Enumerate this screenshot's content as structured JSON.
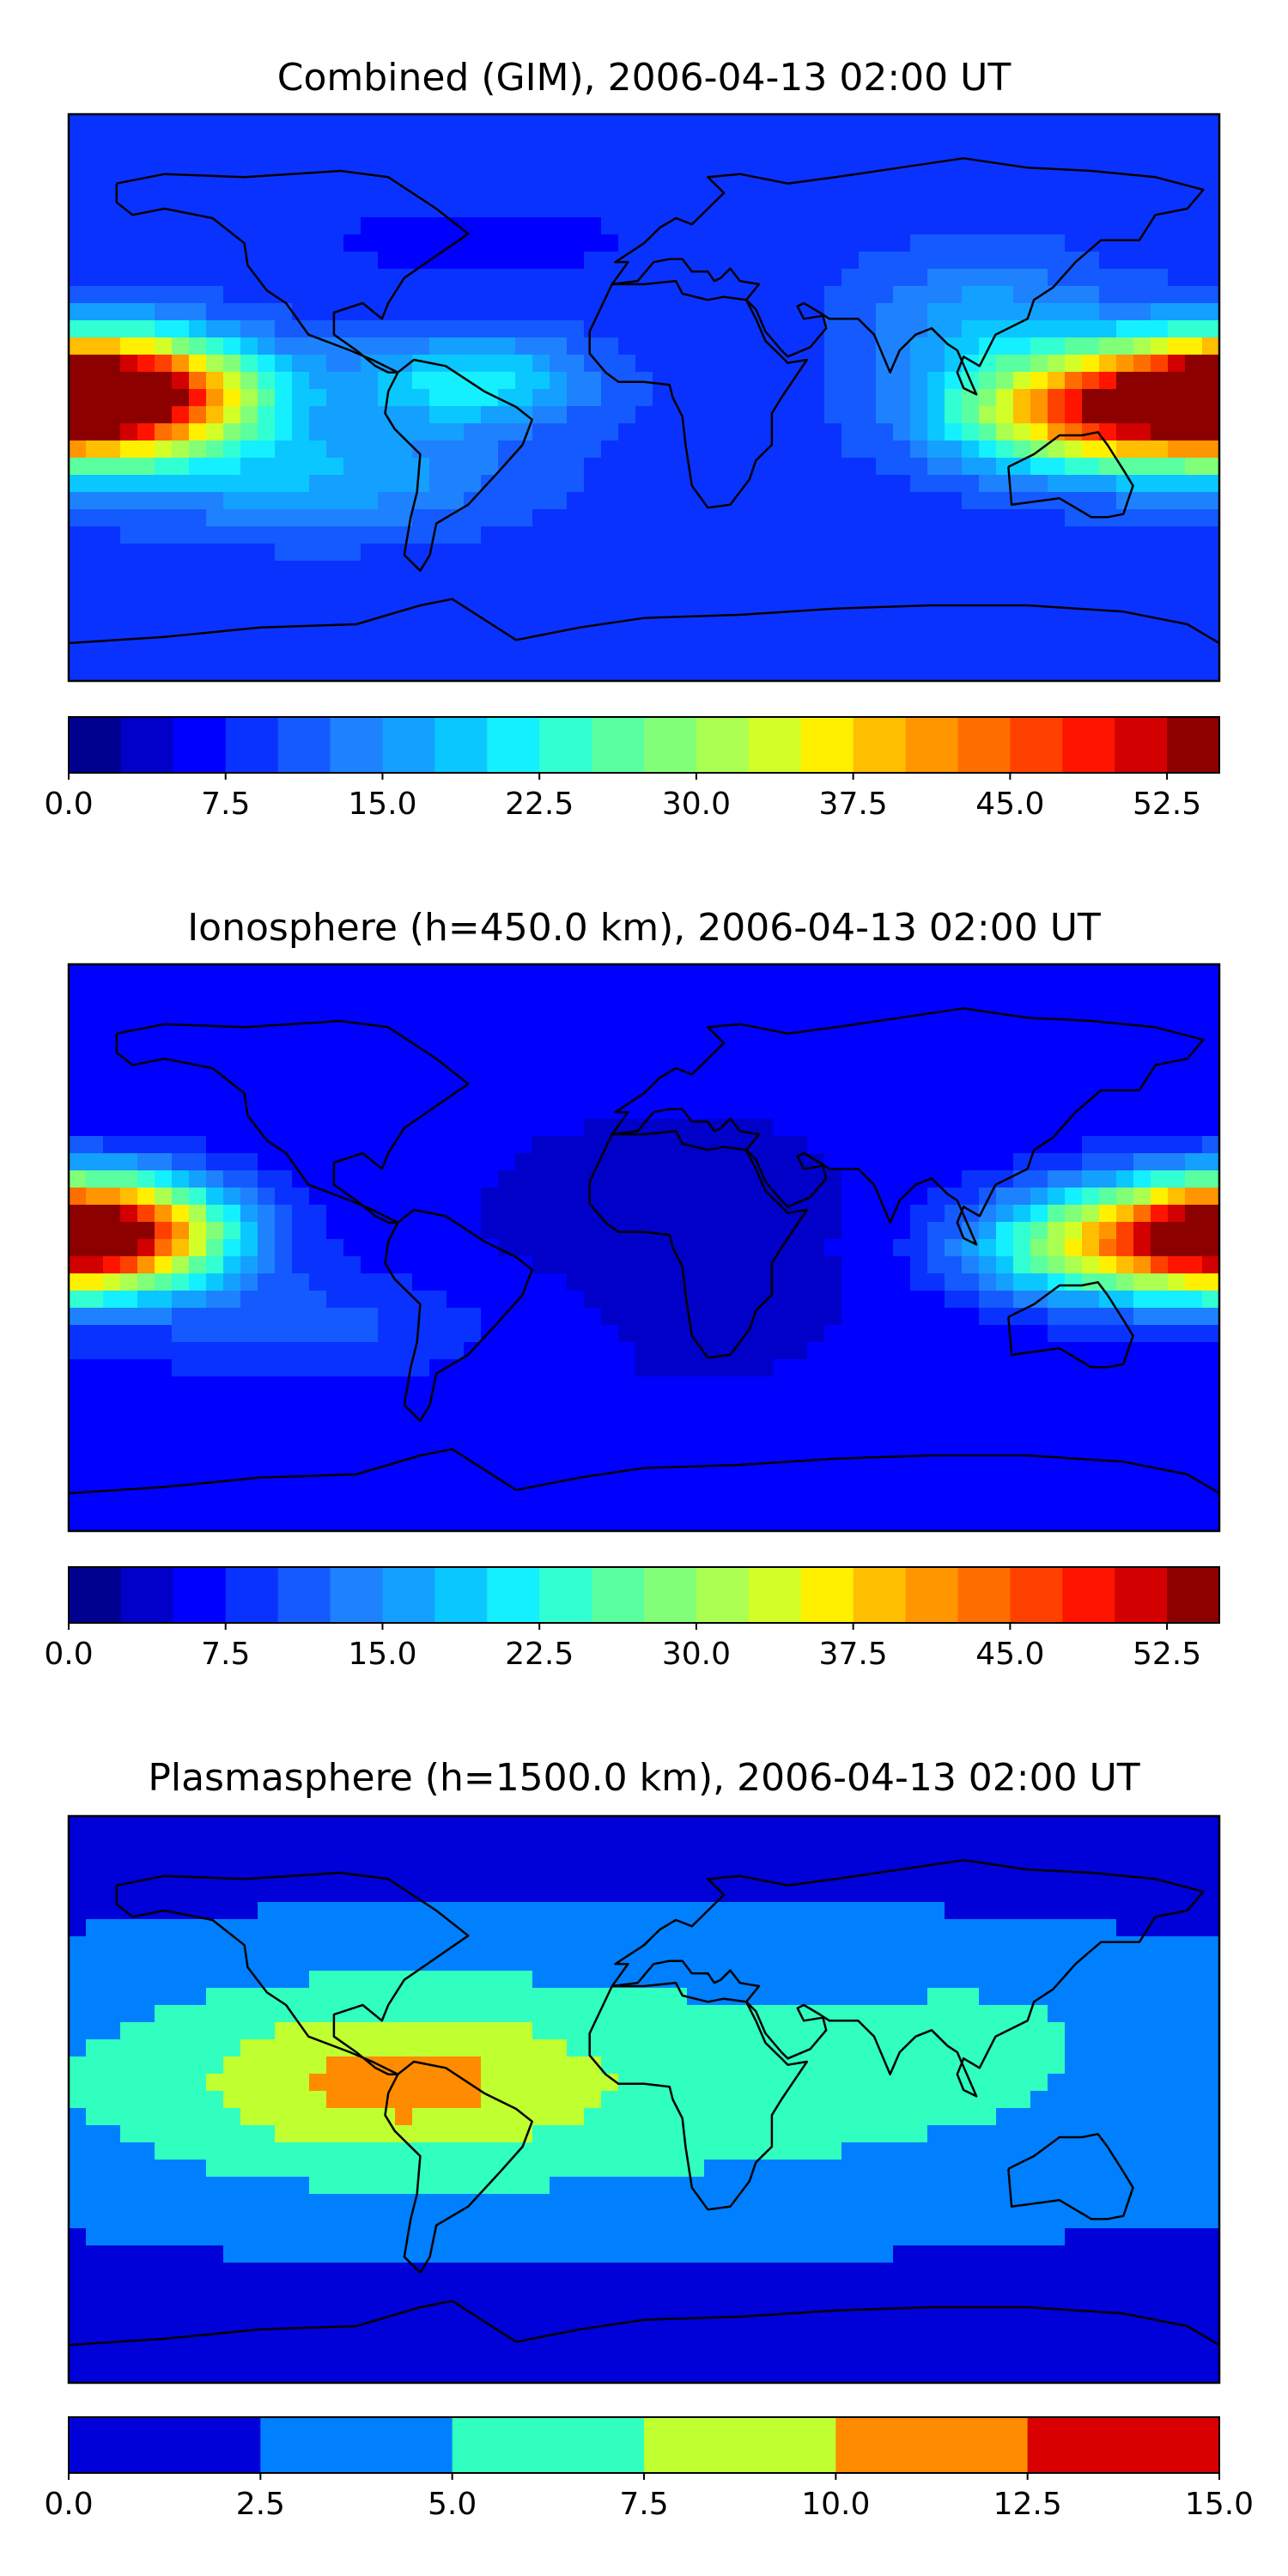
{
  "chart_data": [
    {
      "type": "heatmap",
      "title": "Combined (GIM), 2006-04-13 02:00 UT",
      "colorbar": {
        "range": [
          0,
          55
        ],
        "step": 2.5,
        "tick_values": [
          0,
          7.5,
          15,
          22.5,
          30,
          37.5,
          45,
          52.5
        ],
        "tick_labels": [
          "0.0",
          "7.5",
          "15.0",
          "22.5",
          "30.0",
          "37.5",
          "45.0",
          "52.5"
        ],
        "colors": [
          "#00008f",
          "#0000c8",
          "#0000ff",
          "#0a32ff",
          "#145aff",
          "#1e82ff",
          "#14a0ff",
          "#0ac8ff",
          "#14f0ff",
          "#32ffd2",
          "#5aff9f",
          "#82ff78",
          "#aaff50",
          "#d2ff28",
          "#fff000",
          "#ffbe00",
          "#ff9600",
          "#ff6e00",
          "#ff4100",
          "#ff1400",
          "#d20000",
          "#8c0000"
        ]
      },
      "field": {
        "background": 9,
        "hotspots": [
          {
            "lon": -165,
            "lat": 2,
            "peak": 44,
            "sx": 30,
            "sy": 12
          },
          {
            "lon": 175,
            "lat": -2,
            "peak": 41,
            "sx": 35,
            "sy": 14
          },
          {
            "lon": 130,
            "lat": -5,
            "peak": 30,
            "sx": 28,
            "sy": 12
          },
          {
            "lon": -55,
            "lat": 5,
            "peak": 22,
            "sx": 25,
            "sy": 10
          },
          {
            "lon": -100,
            "lat": -25,
            "peak": 17,
            "sx": 40,
            "sy": 12
          },
          {
            "lon": 105,
            "lat": 25,
            "peak": 16,
            "sx": 25,
            "sy": 14
          }
        ],
        "lows": [
          {
            "lon": 10,
            "lat": -55,
            "peak": 7,
            "sx": 40,
            "sy": 12
          },
          {
            "lon": -50,
            "lat": 50,
            "peak": 5,
            "sx": 45,
            "sy": 10
          }
        ]
      }
    },
    {
      "type": "heatmap",
      "title": "Ionosphere  (h=450.0 km), 2006-04-13 02:00 UT",
      "colorbar": {
        "range": [
          0,
          55
        ],
        "step": 2.5,
        "tick_values": [
          0,
          7.5,
          15,
          22.5,
          30,
          37.5,
          45,
          52.5
        ],
        "tick_labels": [
          "0.0",
          "7.5",
          "15.0",
          "22.5",
          "30.0",
          "37.5",
          "45.0",
          "52.5"
        ],
        "colors": [
          "#00008f",
          "#0000c8",
          "#0000ff",
          "#0a32ff",
          "#145aff",
          "#1e82ff",
          "#14a0ff",
          "#0ac8ff",
          "#14f0ff",
          "#32ffd2",
          "#5aff9f",
          "#82ff78",
          "#aaff50",
          "#d2ff28",
          "#fff000",
          "#ffbe00",
          "#ff9600",
          "#ff6e00",
          "#ff4100",
          "#ff1400",
          "#d20000",
          "#8c0000"
        ]
      },
      "field": {
        "background": 6,
        "hotspots": [
          {
            "lon": -170,
            "lat": 5,
            "peak": 37,
            "sx": 28,
            "sy": 12
          },
          {
            "lon": 178,
            "lat": 3,
            "peak": 35,
            "sx": 30,
            "sy": 13
          },
          {
            "lon": 130,
            "lat": 0,
            "peak": 22,
            "sx": 25,
            "sy": 12
          },
          {
            "lon": -100,
            "lat": -25,
            "peak": 11,
            "sx": 40,
            "sy": 12
          }
        ],
        "lows": [
          {
            "lon": 10,
            "lat": 0,
            "peak": 3,
            "sx": 60,
            "sy": 40
          }
        ]
      }
    },
    {
      "type": "heatmap",
      "title": "Plasmasphere (h=1500.0 km), 2006-04-13 02:00 UT",
      "colorbar": {
        "range": [
          0,
          15
        ],
        "step": 2.5,
        "tick_values": [
          0,
          2.5,
          5,
          7.5,
          10,
          12.5,
          15
        ],
        "tick_labels": [
          "0.0",
          "2.5",
          "5.0",
          "7.5",
          "10.0",
          "12.5",
          "15.0"
        ],
        "colors": [
          "#0000d8",
          "#0080ff",
          "#30ffc0",
          "#c0ff30",
          "#ff8c00",
          "#d80000"
        ]
      },
      "field": {
        "background": 1.5,
        "hotspots": [
          {
            "lon": -20,
            "lat": 5,
            "peak": 6.5,
            "sx": 160,
            "sy": 32
          },
          {
            "lon": -85,
            "lat": 6,
            "peak": 5.5,
            "sx": 45,
            "sy": 20
          },
          {
            "lon": -75,
            "lat": 5,
            "peak": 3.2,
            "sx": 18,
            "sy": 8
          },
          {
            "lon": 110,
            "lat": 30,
            "peak": 2.5,
            "sx": 30,
            "sy": 15
          }
        ],
        "lows": []
      }
    }
  ]
}
